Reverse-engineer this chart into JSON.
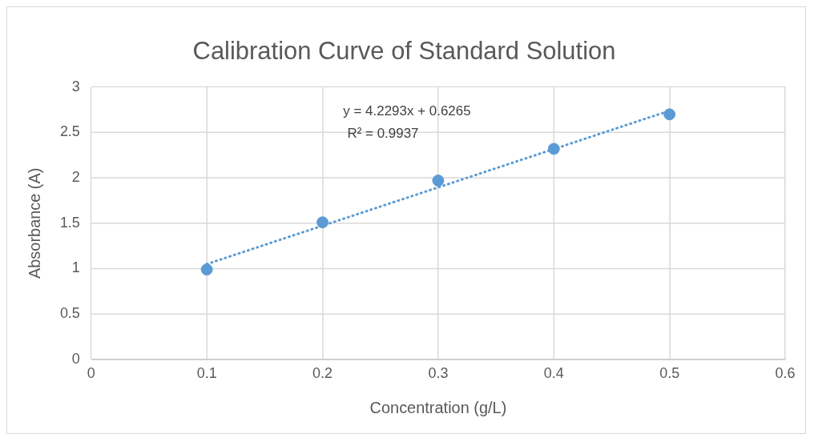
{
  "chart_data": {
    "type": "scatter",
    "title": "Calibration Curve of Standard Solution",
    "xlabel": "Concentration (g/L)",
    "ylabel": "Absorbance (A)",
    "x": [
      0.1,
      0.2,
      0.3,
      0.4,
      0.5
    ],
    "series": [
      {
        "type": "scatter",
        "color": "#5b9bd5",
        "values": [
          0.99,
          1.51,
          1.97,
          2.32,
          2.7
        ],
        "marker": "circle"
      },
      {
        "type": "line",
        "color": "#5b9bd5",
        "x": [
          0.1,
          0.5
        ],
        "values": [
          1.05,
          2.74
        ],
        "line_style": "dotted",
        "marker": "none"
      }
    ],
    "xlim": [
      0,
      0.6
    ],
    "xticks": [
      0,
      0.1,
      0.2,
      0.3,
      0.4,
      0.5,
      0.6
    ],
    "ylim": [
      0,
      3
    ],
    "yticks": [
      0,
      0.5,
      1,
      1.5,
      2,
      2.5,
      3
    ],
    "grid": true,
    "legend": false,
    "annotations": [
      "y = 4.2293x + 0.6265",
      "R² = 0.9937"
    ]
  }
}
